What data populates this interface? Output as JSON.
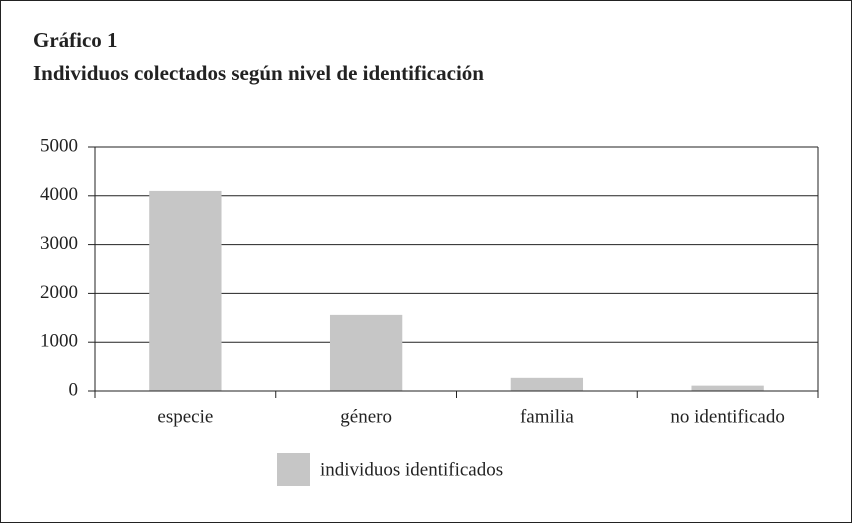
{
  "chart_data": {
    "type": "bar",
    "title": "Gráfico 1",
    "subtitle": "Individuos colectados según nivel de identificación",
    "categories": [
      "especie",
      "género",
      "familia",
      "no identificado"
    ],
    "series": [
      {
        "name": "individuos identificados",
        "color": "#c6c6c6",
        "values": [
          4100,
          1560,
          270,
          110
        ]
      }
    ],
    "ylim": [
      0,
      5000
    ],
    "yticks": [
      0,
      1000,
      2000,
      3000,
      4000,
      5000
    ],
    "grid": true,
    "legend": "bottom"
  }
}
